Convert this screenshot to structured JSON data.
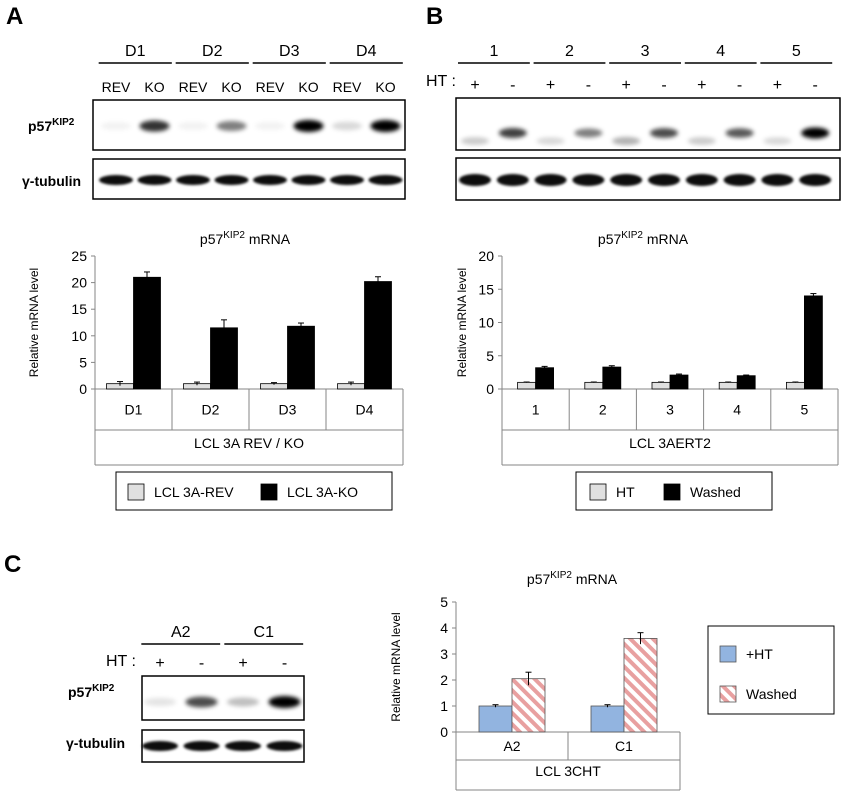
{
  "panel_labels": {
    "a": "A",
    "b": "B",
    "c": "C"
  },
  "blot_a": {
    "groups": [
      "D1",
      "D2",
      "D3",
      "D4"
    ],
    "lanes": [
      "REV",
      "KO",
      "REV",
      "KO",
      "REV",
      "KO",
      "REV",
      "KO"
    ],
    "p57_intensity": [
      0.05,
      0.8,
      0.05,
      0.5,
      0.05,
      1.0,
      0.15,
      1.0
    ],
    "tubulin_intensity": [
      0.95,
      0.95,
      0.95,
      0.95,
      0.95,
      0.95,
      0.95,
      0.95
    ],
    "protein_label_main": "p57",
    "protein_label_sup": "KIP2",
    "loading_label": "γ-tubulin"
  },
  "blot_b": {
    "groups": [
      "1",
      "2",
      "3",
      "4",
      "5"
    ],
    "ht_label": "HT :",
    "lanes": [
      "+",
      "-",
      "+",
      "-",
      "+",
      "-",
      "+",
      "-",
      "+",
      "-"
    ],
    "p57_intensity": [
      0.2,
      0.75,
      0.15,
      0.5,
      0.3,
      0.7,
      0.2,
      0.65,
      0.15,
      1.0
    ],
    "tubulin_intensity": [
      0.95,
      0.95,
      0.95,
      0.95,
      0.95,
      0.95,
      0.95,
      0.95,
      0.95,
      0.95
    ]
  },
  "blot_c": {
    "groups": [
      "A2",
      "C1"
    ],
    "ht_label": "HT :",
    "lanes": [
      "+",
      "-",
      "+",
      "-"
    ],
    "p57_intensity": [
      0.1,
      0.7,
      0.25,
      1.0
    ],
    "tubulin_intensity": [
      0.95,
      0.95,
      0.95,
      0.95
    ],
    "protein_label_main": "p57",
    "protein_label_sup": "KIP2",
    "loading_label": "γ-tubulin"
  },
  "chart_data": [
    {
      "type": "bar",
      "title_main": "p57",
      "title_sup": "KIP2",
      "title_rest": " mRNA",
      "categories": [
        "D1",
        "D2",
        "D3",
        "D4"
      ],
      "series": [
        {
          "name": "LCL 3A-REV",
          "values": [
            1,
            1,
            1,
            1
          ],
          "errors": [
            0.4,
            0.3,
            0.2,
            0.3
          ],
          "color": "#e0e0e0"
        },
        {
          "name": "LCL 3A-KO",
          "values": [
            21,
            11.5,
            11.8,
            20.2
          ],
          "errors": [
            1.0,
            1.5,
            0.6,
            0.9
          ],
          "color": "#000000"
        }
      ],
      "xlabel": "LCL 3A REV / KO",
      "ylabel": "Relative mRNA level",
      "ylim": [
        0,
        25
      ],
      "yticks": [
        0,
        5,
        10,
        15,
        20,
        25
      ],
      "legend_placement": "bottom"
    },
    {
      "type": "bar",
      "title_main": "p57",
      "title_sup": "KIP2",
      "title_rest": " mRNA",
      "categories": [
        "1",
        "2",
        "3",
        "4",
        "5"
      ],
      "series": [
        {
          "name": "HT",
          "values": [
            1,
            1,
            1,
            1,
            1
          ],
          "errors": [
            0.05,
            0.05,
            0.05,
            0.05,
            0.05
          ],
          "color": "#e0e0e0"
        },
        {
          "name": "Washed",
          "values": [
            3.2,
            3.3,
            2.1,
            2.0,
            14.0
          ],
          "errors": [
            0.2,
            0.2,
            0.15,
            0.1,
            0.35
          ],
          "color": "#000000"
        }
      ],
      "xlabel": "LCL 3AERT2",
      "ylabel": "Relative mRNA level",
      "ylim": [
        0,
        20
      ],
      "yticks": [
        0,
        5,
        10,
        15,
        20
      ],
      "legend_placement": "bottom"
    },
    {
      "type": "bar",
      "title_main": "p57",
      "title_sup": "KIP2",
      "title_rest": " mRNA",
      "categories": [
        "A2",
        "C1"
      ],
      "series": [
        {
          "name": "+HT",
          "values": [
            1.0,
            1.0
          ],
          "errors": [
            0.05,
            0.05
          ],
          "color": "#92b4e0"
        },
        {
          "name": "Washed",
          "values": [
            2.05,
            3.6
          ],
          "errors": [
            0.25,
            0.22
          ],
          "color": "#e8a0a0"
        }
      ],
      "xlabel": "LCL 3CHT",
      "ylabel": "Relative mRNA level",
      "ylim": [
        0,
        5
      ],
      "yticks": [
        0,
        1,
        2,
        3,
        4,
        5
      ],
      "legend_placement": "right"
    }
  ]
}
